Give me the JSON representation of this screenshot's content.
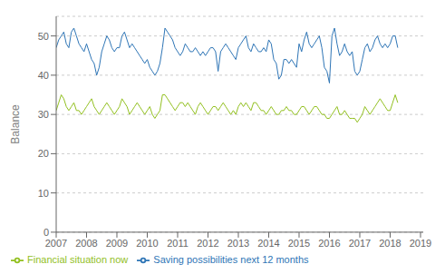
{
  "chart_data": {
    "type": "line",
    "ylabel": "Balance",
    "x": [
      2007,
      2007.0833,
      2007.1667,
      2007.25,
      2007.3333,
      2007.4167,
      2007.5,
      2007.5833,
      2007.6667,
      2007.75,
      2007.8333,
      2007.9167,
      2008,
      2008.0833,
      2008.1667,
      2008.25,
      2008.3333,
      2008.4167,
      2008.5,
      2008.5833,
      2008.6667,
      2008.75,
      2008.8333,
      2008.9167,
      2009,
      2009.0833,
      2009.1667,
      2009.25,
      2009.3333,
      2009.4167,
      2009.5,
      2009.5833,
      2009.6667,
      2009.75,
      2009.8333,
      2009.9167,
      2010,
      2010.0833,
      2010.1667,
      2010.25,
      2010.3333,
      2010.4167,
      2010.5,
      2010.5833,
      2010.6667,
      2010.75,
      2010.8333,
      2010.9167,
      2011,
      2011.0833,
      2011.1667,
      2011.25,
      2011.3333,
      2011.4167,
      2011.5,
      2011.5833,
      2011.6667,
      2011.75,
      2011.8333,
      2011.9167,
      2012,
      2012.0833,
      2012.1667,
      2012.25,
      2012.3333,
      2012.4167,
      2012.5,
      2012.5833,
      2012.6667,
      2012.75,
      2012.8333,
      2012.9167,
      2013,
      2013.0833,
      2013.1667,
      2013.25,
      2013.3333,
      2013.4167,
      2013.5,
      2013.5833,
      2013.6667,
      2013.75,
      2013.8333,
      2013.9167,
      2014,
      2014.0833,
      2014.1667,
      2014.25,
      2014.3333,
      2014.4167,
      2014.5,
      2014.5833,
      2014.6667,
      2014.75,
      2014.8333,
      2014.9167,
      2015,
      2015.0833,
      2015.1667,
      2015.25,
      2015.3333,
      2015.4167,
      2015.5,
      2015.5833,
      2015.6667,
      2015.75,
      2015.8333,
      2015.9167,
      2016,
      2016.0833,
      2016.1667,
      2016.25,
      2016.3333,
      2016.4167,
      2016.5,
      2016.5833,
      2016.6667,
      2016.75,
      2016.8333,
      2016.9167,
      2017,
      2017.0833,
      2017.1667,
      2017.25,
      2017.3333,
      2017.4167,
      2017.5,
      2017.5833,
      2017.6667,
      2017.75,
      2017.8333,
      2017.9167,
      2018,
      2018.0833,
      2018.1667,
      2018.25
    ],
    "series": [
      {
        "name": "Saving possibilities next 12 months",
        "color": "#2e75b6",
        "values": [
          47,
          49,
          50,
          51,
          48,
          47,
          51,
          52,
          50,
          48,
          47,
          46,
          48,
          46,
          44,
          43,
          40,
          42,
          46,
          48,
          50,
          49,
          47,
          46,
          47,
          47,
          50,
          51,
          49,
          47,
          48,
          47,
          46,
          45,
          44,
          43,
          44,
          42,
          41,
          40,
          41,
          43,
          47,
          52,
          51,
          50,
          49,
          47,
          46,
          45,
          46,
          48,
          47,
          46,
          46,
          47,
          46,
          45,
          46,
          45,
          46,
          47,
          47,
          46,
          41,
          46,
          47,
          48,
          47,
          46,
          45,
          44,
          47,
          48,
          49,
          50,
          47,
          46,
          48,
          47,
          46,
          46,
          47,
          46,
          49,
          48,
          44,
          43,
          39,
          40,
          44,
          44,
          43,
          44,
          43,
          42,
          48,
          46,
          49,
          51,
          48,
          47,
          48,
          49,
          50,
          47,
          42,
          41,
          38,
          50,
          52,
          48,
          45,
          46,
          48,
          46,
          45,
          46,
          41,
          40,
          41,
          44,
          47,
          48,
          46,
          47,
          49,
          50,
          48,
          47,
          48,
          47,
          48,
          50,
          50,
          47
        ]
      },
      {
        "name": "Financial situation now",
        "color": "#92c01f",
        "values": [
          31,
          33,
          35,
          34,
          32,
          31,
          32,
          33,
          31,
          31,
          30,
          31,
          32,
          33,
          34,
          32,
          31,
          30,
          31,
          32,
          33,
          32,
          31,
          30,
          31,
          32,
          34,
          33,
          32,
          30,
          31,
          32,
          33,
          32,
          31,
          30,
          31,
          32,
          30,
          29,
          30,
          31,
          35,
          35,
          34,
          33,
          32,
          31,
          32,
          33,
          33,
          32,
          33,
          32,
          31,
          30,
          32,
          33,
          32,
          31,
          30,
          31,
          32,
          32,
          31,
          32,
          33,
          32,
          31,
          30,
          31,
          30,
          32,
          33,
          32,
          33,
          32,
          31,
          33,
          33,
          32,
          31,
          31,
          30,
          31,
          32,
          31,
          30,
          30,
          31,
          31,
          32,
          31,
          31,
          30,
          30,
          31,
          32,
          32,
          31,
          30,
          31,
          32,
          32,
          31,
          30,
          30,
          29,
          29,
          30,
          31,
          32,
          30,
          30,
          31,
          30,
          29,
          29,
          29,
          28,
          29,
          30,
          32,
          31,
          30,
          31,
          32,
          33,
          34,
          33,
          32,
          31,
          31,
          33,
          35,
          33
        ]
      }
    ],
    "xlim": [
      2007.0,
      2019.09
    ],
    "xticks": [
      2007,
      2008,
      2009,
      2010,
      2011,
      2012,
      2013,
      2014,
      2015,
      2016,
      2017,
      2018,
      2019
    ],
    "ylim": [
      0,
      55
    ],
    "yticks": [
      0,
      10,
      20,
      30,
      40,
      50
    ],
    "grid": "y",
    "legend": "lower left"
  }
}
